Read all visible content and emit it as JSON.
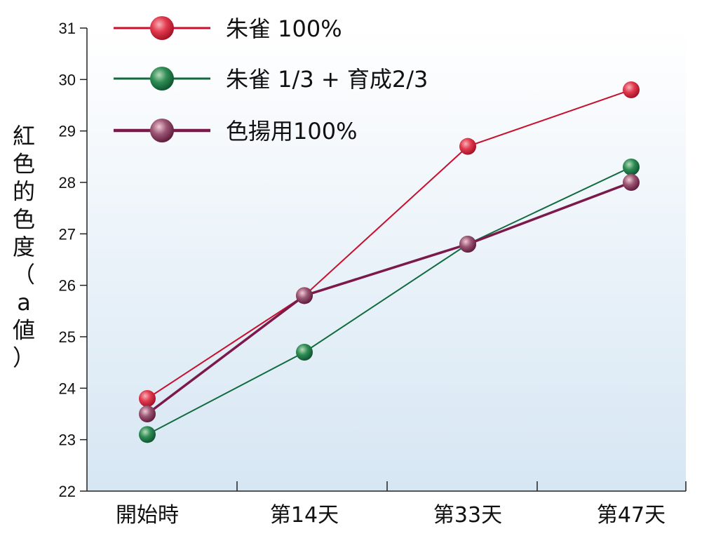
{
  "chart_data": {
    "type": "line",
    "categories": [
      "開始時",
      "第14天",
      "第33天",
      "第47天"
    ],
    "series": [
      {
        "name": "朱雀 100%",
        "color": "#c8102e",
        "values": [
          23.8,
          25.8,
          28.7,
          29.8
        ]
      },
      {
        "name": "朱雀 1/3 + 育成2/3",
        "color": "#116b3e",
        "values": [
          23.1,
          24.7,
          26.8,
          28.3
        ]
      },
      {
        "name": "色揚用100%",
        "color": "#7b1a4a",
        "values": [
          23.5,
          25.8,
          26.8,
          28.0
        ]
      }
    ],
    "ylabel": "紅色的色度（a値）",
    "ylim": [
      22,
      31
    ],
    "yticks": [
      "22",
      "23",
      "24",
      "25",
      "26",
      "27",
      "28",
      "29",
      "30",
      "31"
    ],
    "legend": "top-left",
    "grid": false
  }
}
